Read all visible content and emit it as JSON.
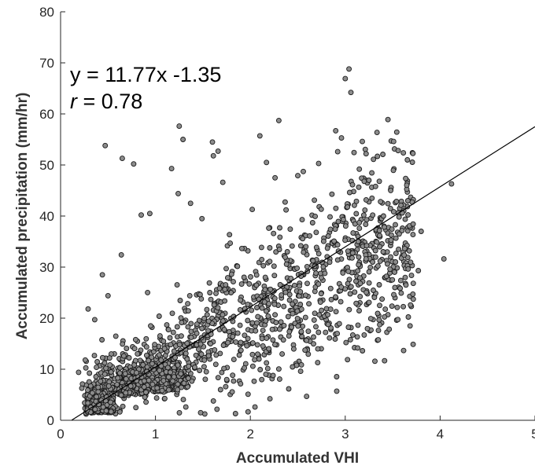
{
  "chart_data": {
    "type": "scatter",
    "xlabel": "Accumulated VHI",
    "ylabel": "Accumulated precipitation (mm/hr)",
    "xlim": [
      0,
      5
    ],
    "ylim": [
      0,
      80
    ],
    "xticks": [
      "0",
      "1",
      "2",
      "3",
      "4",
      "5"
    ],
    "yticks": [
      "0",
      "10",
      "20",
      "30",
      "40",
      "50",
      "60",
      "70",
      "80"
    ],
    "fit_line": {
      "slope": 11.77,
      "intercept": -1.35
    },
    "annotation": {
      "equation": "y = 11.77x -1.35",
      "r_symbol": "r",
      "r_value": " = 0.78"
    },
    "marker_color": "#8c8c8c",
    "marker_edge": "#1a1a1a",
    "point_seed": 42,
    "point_count": 2000,
    "points": [
      [
        0.47,
        53.8
      ],
      [
        0.65,
        51.3
      ],
      [
        0.77,
        50.2
      ],
      [
        1.17,
        49.3
      ],
      [
        1.25,
        57.6
      ],
      [
        1.29,
        55.0
      ],
      [
        1.6,
        54.5
      ],
      [
        1.61,
        51.8
      ],
      [
        1.66,
        52.7
      ],
      [
        1.71,
        46.6
      ],
      [
        2.1,
        55.7
      ],
      [
        2.3,
        58.7
      ],
      [
        2.17,
        50.5
      ],
      [
        2.26,
        47.5
      ],
      [
        2.9,
        56.7
      ],
      [
        2.92,
        52.6
      ],
      [
        2.96,
        55.3
      ],
      [
        3.0,
        66.9
      ],
      [
        3.04,
        68.8
      ],
      [
        3.06,
        64.2
      ],
      [
        3.18,
        54.6
      ],
      [
        3.22,
        52.2
      ],
      [
        3.45,
        58.9
      ],
      [
        3.51,
        54.6
      ],
      [
        4.12,
        46.3
      ],
      [
        3.8,
        37.0
      ],
      [
        3.66,
        43.0
      ],
      [
        4.04,
        31.6
      ],
      [
        3.77,
        29.3
      ],
      [
        3.64,
        26.5
      ],
      [
        0.44,
        28.5
      ],
      [
        0.64,
        32.4
      ],
      [
        0.85,
        40.2
      ],
      [
        0.94,
        40.5
      ],
      [
        1.24,
        44.4
      ],
      [
        1.37,
        42.5
      ],
      [
        1.49,
        39.5
      ],
      [
        2.02,
        41.3
      ],
      [
        2.5,
        47.9
      ],
      [
        2.72,
        50.3
      ],
      [
        3.25,
        47.0
      ],
      [
        3.4,
        33.0
      ],
      [
        3.53,
        31.0
      ],
      [
        0.36,
        19.7
      ],
      [
        0.29,
        21.8
      ],
      [
        0.5,
        24.4
      ],
      [
        2.53,
        9.6
      ],
      [
        2.71,
        11.3
      ],
      [
        3.2,
        16.7
      ],
      [
        3.35,
        17.6
      ],
      [
        0.9,
        5.5
      ],
      [
        0.19,
        9.4
      ],
      [
        0.26,
        11.8
      ]
    ]
  }
}
